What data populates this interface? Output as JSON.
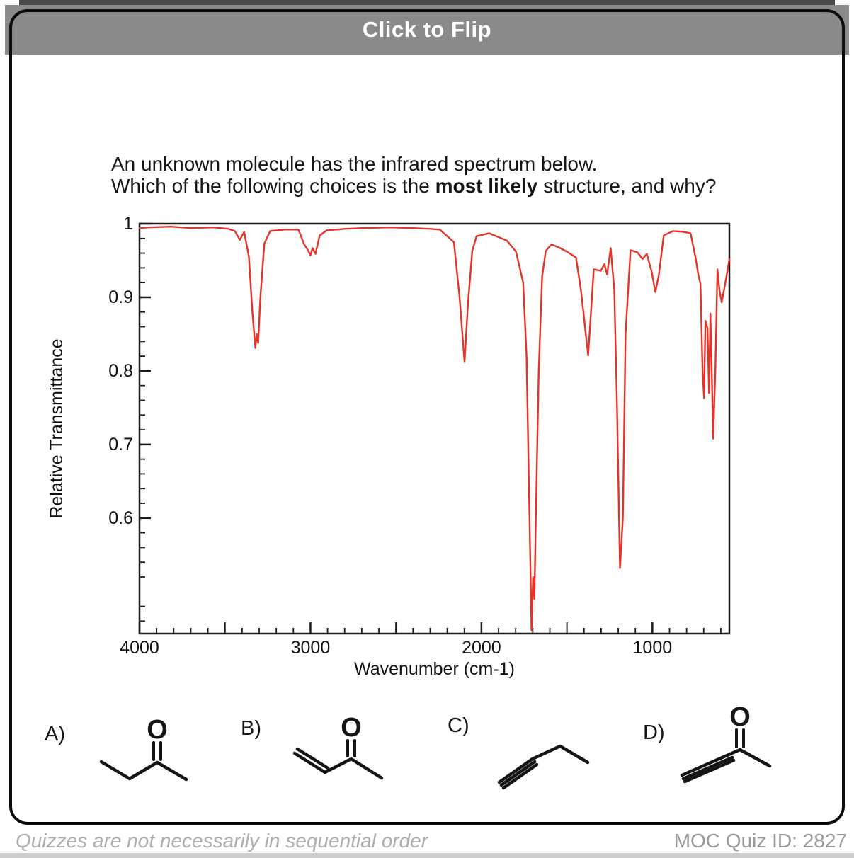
{
  "header": {
    "title": "Click to Flip",
    "band_color": "#8a8a8a"
  },
  "question": {
    "line1": "An unknown molecule has the infrared spectrum below.",
    "line2_prefix": "Which of the following choices is the ",
    "line2_bold": "most likely",
    "line2_suffix": " structure, and why?"
  },
  "chart_data": {
    "type": "line",
    "title": "",
    "xlabel": "Wavenumber (cm-1)",
    "ylabel": "Relative Transmittance",
    "xlim": [
      4000,
      550
    ],
    "ylim": [
      0.443,
      1.0
    ],
    "x_ticks_major": [
      4000,
      3000,
      2000,
      1000
    ],
    "x_ticks_semi": [
      3500,
      2500,
      1500
    ],
    "x_minor_step": 100,
    "y_ticks_major": [
      1,
      0.9,
      0.8,
      0.7,
      0.6
    ],
    "y_tick_labels": [
      "1",
      "0.9",
      "0.8",
      "0.7",
      "0.6"
    ],
    "y_minor_step": 0.02,
    "grid": false,
    "legend": "none",
    "line_color": "#e63329",
    "x_axis_reversed": true,
    "points": [
      [
        4000,
        0.994
      ],
      [
        3950,
        0.995
      ],
      [
        3815,
        0.996
      ],
      [
        3700,
        0.994
      ],
      [
        3565,
        0.995
      ],
      [
        3480,
        0.993
      ],
      [
        3442,
        0.99
      ],
      [
        3413,
        0.978
      ],
      [
        3388,
        0.989
      ],
      [
        3360,
        0.955
      ],
      [
        3340,
        0.88
      ],
      [
        3322,
        0.831
      ],
      [
        3314,
        0.85
      ],
      [
        3306,
        0.838
      ],
      [
        3293,
        0.9
      ],
      [
        3270,
        0.973
      ],
      [
        3236,
        0.99
      ],
      [
        3150,
        0.992
      ],
      [
        3070,
        0.992
      ],
      [
        3037,
        0.972
      ],
      [
        3017,
        0.965
      ],
      [
        3000,
        0.957
      ],
      [
        2988,
        0.967
      ],
      [
        2971,
        0.959
      ],
      [
        2946,
        0.984
      ],
      [
        2905,
        0.991
      ],
      [
        2800,
        0.993
      ],
      [
        2700,
        0.994
      ],
      [
        2533,
        0.995
      ],
      [
        2400,
        0.994
      ],
      [
        2300,
        0.993
      ],
      [
        2244,
        0.992
      ],
      [
        2161,
        0.975
      ],
      [
        2128,
        0.9
      ],
      [
        2099,
        0.812
      ],
      [
        2079,
        0.89
      ],
      [
        2054,
        0.963
      ],
      [
        2029,
        0.983
      ],
      [
        1955,
        0.987
      ],
      [
        1913,
        0.983
      ],
      [
        1851,
        0.977
      ],
      [
        1798,
        0.962
      ],
      [
        1756,
        0.92
      ],
      [
        1736,
        0.82
      ],
      [
        1723,
        0.65
      ],
      [
        1711,
        0.5
      ],
      [
        1707,
        0.447
      ],
      [
        1698,
        0.52
      ],
      [
        1690,
        0.49
      ],
      [
        1682,
        0.6
      ],
      [
        1665,
        0.8
      ],
      [
        1645,
        0.928
      ],
      [
        1624,
        0.963
      ],
      [
        1591,
        0.972
      ],
      [
        1550,
        0.968
      ],
      [
        1500,
        0.962
      ],
      [
        1447,
        0.954
      ],
      [
        1418,
        0.91
      ],
      [
        1376,
        0.821
      ],
      [
        1343,
        0.938
      ],
      [
        1302,
        0.936
      ],
      [
        1281,
        0.945
      ],
      [
        1265,
        0.931
      ],
      [
        1244,
        0.967
      ],
      [
        1223,
        0.91
      ],
      [
        1207,
        0.75
      ],
      [
        1190,
        0.532
      ],
      [
        1173,
        0.6
      ],
      [
        1157,
        0.85
      ],
      [
        1128,
        0.964
      ],
      [
        1087,
        0.961
      ],
      [
        1058,
        0.952
      ],
      [
        1033,
        0.959
      ],
      [
        1004,
        0.934
      ],
      [
        983,
        0.907
      ],
      [
        963,
        0.93
      ],
      [
        934,
        0.984
      ],
      [
        880,
        0.99
      ],
      [
        820,
        0.989
      ],
      [
        777,
        0.987
      ],
      [
        748,
        0.954
      ],
      [
        731,
        0.93
      ],
      [
        719,
        0.918
      ],
      [
        707,
        0.8
      ],
      [
        698,
        0.763
      ],
      [
        690,
        0.868
      ],
      [
        678,
        0.858
      ],
      [
        669,
        0.77
      ],
      [
        661,
        0.878
      ],
      [
        653,
        0.8
      ],
      [
        645,
        0.708
      ],
      [
        632,
        0.8
      ],
      [
        620,
        0.938
      ],
      [
        608,
        0.91
      ],
      [
        595,
        0.893
      ],
      [
        575,
        0.918
      ],
      [
        550,
        0.952
      ]
    ]
  },
  "choices": [
    {
      "label": "A)",
      "atom_label": "O",
      "structure": "2-butanone"
    },
    {
      "label": "B)",
      "atom_label": "O",
      "structure": "methyl-vinyl-ketone"
    },
    {
      "label": "C)",
      "atom_label": "",
      "structure": "1-butyne"
    },
    {
      "label": "D)",
      "atom_label": "O",
      "structure": "3-butyn-2-one"
    }
  ],
  "footer": {
    "left": "Quizzes are not necessarily in sequential order",
    "right": "MOC Quiz ID: 2827"
  }
}
